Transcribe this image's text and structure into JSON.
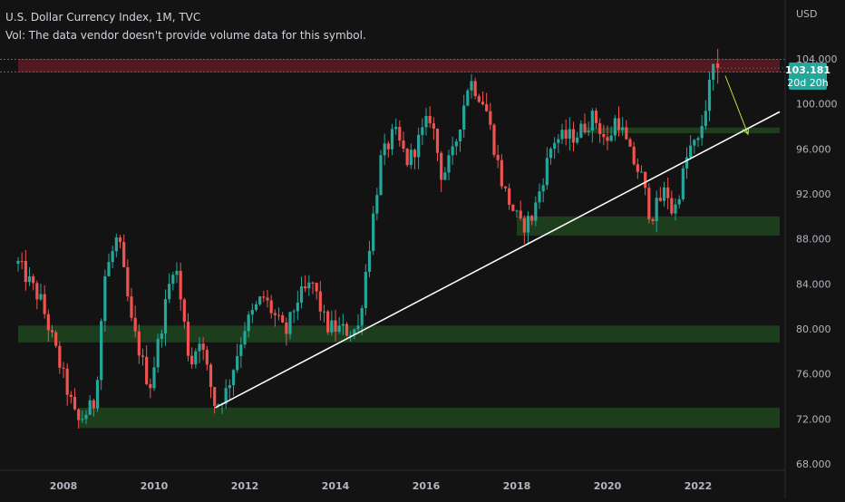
{
  "header": {
    "title": "U.S. Dollar Currency Index, 1M, TVC",
    "volume_note": "Vol: The data vendor doesn't provide volume data for this symbol."
  },
  "price_axis": {
    "currency": "USD",
    "ticks": [
      "104.000",
      "100.000",
      "96.000",
      "92.000",
      "88.000",
      "84.000",
      "80.000",
      "76.000",
      "72.000",
      "68.000"
    ],
    "current_price": "103.181",
    "countdown": "20d 20h"
  },
  "time_axis": {
    "ticks": [
      "2008",
      "2010",
      "2012",
      "2014",
      "2016",
      "2018",
      "2020",
      "2022"
    ]
  },
  "colors": {
    "background": "#131313",
    "up": "#26a69a",
    "down": "#ef5350",
    "zone": "#1e4620",
    "resistance": "#5a1c22",
    "trendline": "#ffffff",
    "arrow": "#c8dc3c",
    "price_badge": "#26a69a"
  },
  "chart_data": {
    "type": "candlestick",
    "title": "U.S. Dollar Currency Index, 1M, TVC",
    "xlabel": "",
    "ylabel": "",
    "x_range": [
      2007.0,
      2023.8
    ],
    "ylim": [
      67.5,
      105.5
    ],
    "candle_interval": "1M",
    "anchors": [
      [
        2007.0,
        85.8
      ],
      [
        2007.5,
        82.5
      ],
      [
        2008.2,
        73.0
      ],
      [
        2008.3,
        71.6
      ],
      [
        2008.7,
        73.5
      ],
      [
        2008.9,
        84.5
      ],
      [
        2009.2,
        88.3
      ],
      [
        2009.5,
        80.5
      ],
      [
        2009.9,
        74.8
      ],
      [
        2010.45,
        86.3
      ],
      [
        2010.8,
        76.7
      ],
      [
        2011.0,
        79.3
      ],
      [
        2011.35,
        73.1
      ],
      [
        2011.6,
        74.5
      ],
      [
        2012.0,
        80.2
      ],
      [
        2012.4,
        82.9
      ],
      [
        2012.9,
        79.5
      ],
      [
        2013.15,
        82.6
      ],
      [
        2013.5,
        84.0
      ],
      [
        2013.8,
        80.2
      ],
      [
        2014.3,
        79.8
      ],
      [
        2014.5,
        80.1
      ],
      [
        2015.0,
        95.0
      ],
      [
        2015.3,
        97.5
      ],
      [
        2015.6,
        94.8
      ],
      [
        2016.1,
        99.0
      ],
      [
        2016.35,
        93.5
      ],
      [
        2016.6,
        95.6
      ],
      [
        2016.95,
        102.2
      ],
      [
        2017.3,
        100.0
      ],
      [
        2017.7,
        92.5
      ],
      [
        2018.1,
        89.0
      ],
      [
        2018.35,
        90.0
      ],
      [
        2018.8,
        96.8
      ],
      [
        2019.3,
        97.2
      ],
      [
        2019.7,
        98.9
      ],
      [
        2020.0,
        96.4
      ],
      [
        2020.2,
        99.0
      ],
      [
        2020.5,
        95.5
      ],
      [
        2020.75,
        93.5
      ],
      [
        2020.95,
        89.9
      ],
      [
        2021.3,
        92.5
      ],
      [
        2021.45,
        90.0
      ],
      [
        2021.8,
        96.0
      ],
      [
        2022.0,
        96.5
      ],
      [
        2022.35,
        103.5
      ]
    ],
    "up_color": "#26a69a",
    "down_color": "#ef5350",
    "current_price": 103.181,
    "support_zones": [
      {
        "x_from": 2008.35,
        "x_to": 2023.8,
        "y_from": 71.2,
        "y_to": 73.0
      },
      {
        "x_from": 2007.0,
        "x_to": 2023.8,
        "y_from": 78.8,
        "y_to": 80.3
      },
      {
        "x_from": 2018.0,
        "x_to": 2023.8,
        "y_from": 88.3,
        "y_to": 90.0
      },
      {
        "x_from": 2019.5,
        "x_to": 2023.8,
        "y_from": 97.4,
        "y_to": 97.9
      }
    ],
    "resistance_zone": {
      "x_from": 2007.0,
      "x_to": 2023.8,
      "y_from": 102.8,
      "y_to": 104.0
    },
    "trendline": {
      "x1": 2011.35,
      "y1": 73.0,
      "x2": 2023.8,
      "y2": 99.3
    },
    "projection_arrow": {
      "x1": 2022.6,
      "y1": 102.5,
      "x2": 2023.1,
      "y2": 97.3
    },
    "grid": false,
    "legend": "none"
  }
}
